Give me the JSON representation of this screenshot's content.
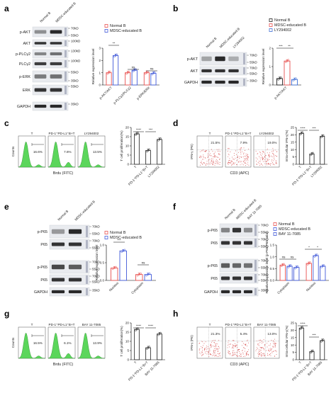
{
  "colors": {
    "normal": "#e8504f",
    "mdsc": "#4159d9",
    "ly": "#3f6fd6",
    "bay": "#4159d9",
    "green": "#5bd65b",
    "red": "#d23c3c",
    "blot_bg": "#e9ebef",
    "band": "#1f1f1f",
    "marker": "#9aa0b4"
  },
  "panels": {
    "a": {
      "label": "a",
      "lanes": [
        "Normal B",
        "MDSC-educated B"
      ],
      "rows": [
        "p-AKT",
        "AKT",
        "p-PLCγ2",
        "PLCγ2",
        "p-ERK",
        "ERK",
        "GAPDH"
      ],
      "markers": [
        "70kD",
        "55kD",
        "100kD",
        "130kD",
        "100kD",
        "55kD",
        "35kD",
        "55kD",
        "35kD"
      ],
      "chart": {
        "legend": [
          "Normal B",
          "MDSC-educated B"
        ],
        "ylabel": "Relative expression level",
        "yticks": [
          "0",
          "1",
          "2",
          "3"
        ],
        "categories": [
          "p-AKT/AKT",
          "p-PLCγ2/PLCγ2",
          "p-ERK/ERK"
        ],
        "sig": [
          "**",
          "ns",
          "ns"
        ]
      }
    },
    "b": {
      "label": "b",
      "lanes": [
        "Normal B",
        "MDSC-educated B",
        "LY294002"
      ],
      "rows": [
        "p-AKT",
        "AKT",
        "GAPDH"
      ],
      "markers": [
        "70kD",
        "55kD",
        "70kD",
        "55kD",
        "35kD"
      ],
      "chart": {
        "legend": [
          "Normal B",
          "MDSC-educated B",
          "LY294002"
        ],
        "ylabel": "Relative expression level",
        "yticks": [
          "0",
          "1",
          "2"
        ],
        "categories": [
          "p-AKT/AKT"
        ],
        "sig": [
          "***",
          "**"
        ]
      }
    },
    "c": {
      "label": "c",
      "flow": {
        "ylabel": "Counts",
        "xlabel": "Brdu (FITC)",
        "plots": [
          {
            "title": "T",
            "pct": "16.6%"
          },
          {
            "title": "PD-1⁺PD-L1⁺B+T",
            "pct": "7.6%"
          },
          {
            "title": "LY294002",
            "pct": "13.5%"
          }
        ]
      },
      "chart": {
        "ylabel": "T cell proliferation(%)",
        "yticks": [
          "0",
          "5",
          "10",
          "15",
          "20"
        ],
        "categories": [
          "T",
          "PD-1⁺PD-L1⁺B+T",
          "LY294002"
        ],
        "sig": [
          "****",
          "***"
        ]
      }
    },
    "d": {
      "label": "d",
      "flow": {
        "ylabel": "IFN-γ (PE)",
        "xlabel": "CD3 (APC)",
        "plots": [
          {
            "title": "T",
            "pct": "21.5%"
          },
          {
            "title": "PD-1⁺PD-L1⁺B+T",
            "pct": "7.9%"
          },
          {
            "title": "LY294002",
            "pct": "19.0%"
          }
        ]
      },
      "chart": {
        "ylabel": "Intra-cellular IFN-γ(%)",
        "yticks": [
          "0",
          "5",
          "10",
          "15",
          "20",
          "25"
        ],
        "categories": [
          "T",
          "PD-1⁺PD-L1⁺B+T",
          "LY294002"
        ],
        "sig": [
          "****",
          "***"
        ]
      }
    },
    "e": {
      "label": "e",
      "lanes": [
        "Normal B",
        "MDSC-educated B"
      ],
      "groups": [
        "Nucleus",
        "Cytoplasm"
      ],
      "rows": [
        "p-P65",
        "P65",
        "p-P65",
        "P65",
        "GAPDH"
      ],
      "markers": [
        "70kD",
        "55kD",
        "70kD",
        "55kD",
        "70kD",
        "55kD",
        "70kD",
        "55kD",
        "35kD"
      ],
      "chart": {
        "legend": [
          "Normal B",
          "MDSC-educated B"
        ],
        "ylabel": "Relative expression level",
        "yticks": [
          "0.0",
          "0.5",
          "1.0"
        ],
        "categories": [
          "Nucleus",
          "Cytoplasm"
        ],
        "sig": [
          "***",
          "ns"
        ]
      }
    },
    "f": {
      "label": "f",
      "lanes": [
        "Normal B",
        "MDSC-educated B",
        "BAY 11-7085"
      ],
      "groups": [
        "Nucleus",
        "Cytoplasm"
      ],
      "rows": [
        "p-P65",
        "P65",
        "p-P65",
        "P65",
        "GAPDH"
      ],
      "markers": [
        "70kD",
        "55kD",
        "70kD",
        "55kD",
        "70kD",
        "55kD",
        "70kD",
        "55kD",
        "35kD"
      ],
      "chart": {
        "legend": [
          "Normal B",
          "MDSC-educated B",
          "BAY 11-7085"
        ],
        "ylabel": "Relative expression level (p-P65/P65 ratio)",
        "yticks": [
          "0.0",
          "0.5",
          "1.0",
          "1.5"
        ],
        "categories": [
          "Cytoplasm",
          "Nucleus"
        ],
        "sig": [
          "ns",
          "ns",
          "*",
          "*"
        ]
      }
    },
    "g": {
      "label": "g",
      "flow": {
        "ylabel": "Counts",
        "xlabel": "Brdu (FITC)",
        "plots": [
          {
            "title": "T",
            "pct": "16.5%"
          },
          {
            "title": "PD-1⁺PD-L1⁺B+T",
            "pct": "6.1%"
          },
          {
            "title": "BAY 11-7085",
            "pct": "13.9%"
          }
        ]
      },
      "chart": {
        "ylabel": "T cell proliferation(%)",
        "yticks": [
          "0",
          "5",
          "10",
          "15",
          "20"
        ],
        "categories": [
          "T",
          "PD-1⁺PD-L1⁺B+T",
          "BAY 11-7085"
        ],
        "sig": [
          "****",
          "****"
        ]
      }
    },
    "h": {
      "label": "h",
      "flow": {
        "ylabel": "IFN-γ (PE)",
        "xlabel": "CD3 (APC)",
        "plots": [
          {
            "title": "T",
            "pct": "21.3%"
          },
          {
            "title": "PD-1⁺PD-L1⁺B+T",
            "pct": "5.4%"
          },
          {
            "title": "BAY 11-7085",
            "pct": "13.0%"
          }
        ]
      },
      "chart": {
        "ylabel": "Intra-cellular IFN-γ(%)",
        "yticks": [
          "0",
          "5",
          "10",
          "15",
          "20",
          "25"
        ],
        "categories": [
          "T",
          "PD-1⁺PD-L1⁺B+T",
          "BAY 11-7085"
        ],
        "sig": [
          "****",
          "***"
        ]
      }
    }
  },
  "chart_data": [
    {
      "panel": "a",
      "type": "bar",
      "categories": [
        "p-AKT/AKT",
        "p-PLCγ2/PLCγ2",
        "p-ERK/ERK"
      ],
      "series": [
        {
          "name": "Normal B",
          "values": [
            1.0,
            1.0,
            1.0
          ]
        },
        {
          "name": "MDSC-educated B",
          "values": [
            2.4,
            1.2,
            0.95
          ]
        }
      ],
      "ylabel": "Relative expression level",
      "ylim": [
        0,
        3
      ]
    },
    {
      "panel": "b",
      "type": "bar",
      "categories": [
        "p-AKT/AKT"
      ],
      "series": [
        {
          "name": "Normal B",
          "values": [
            0.35
          ]
        },
        {
          "name": "MDSC-educated B",
          "values": [
            1.3
          ]
        },
        {
          "name": "LY294002",
          "values": [
            0.3
          ]
        }
      ],
      "ylabel": "Relative expression level",
      "ylim": [
        0,
        2
      ]
    },
    {
      "panel": "c",
      "type": "bar",
      "categories": [
        "T",
        "PD-1⁺PD-L1⁺B+T",
        "LY294002"
      ],
      "values": [
        16.5,
        7.5,
        13.5
      ],
      "ylabel": "T cell proliferation(%)",
      "ylim": [
        0,
        20
      ]
    },
    {
      "panel": "d",
      "type": "bar",
      "categories": [
        "T",
        "PD-1⁺PD-L1⁺B+T",
        "LY294002"
      ],
      "values": [
        21,
        7,
        19
      ],
      "ylabel": "Intra-cellular IFN-γ(%)",
      "ylim": [
        0,
        25
      ]
    },
    {
      "panel": "e",
      "type": "bar",
      "categories": [
        "Nucleus",
        "Cytoplasm"
      ],
      "series": [
        {
          "name": "Normal B",
          "values": [
            0.42,
            0.2
          ]
        },
        {
          "name": "MDSC-educated B",
          "values": [
            1.0,
            0.2
          ]
        }
      ],
      "ylabel": "Relative expression level",
      "ylim": [
        0,
        1.2
      ]
    },
    {
      "panel": "f",
      "type": "bar",
      "categories": [
        "Cytoplasm",
        "Nucleus"
      ],
      "series": [
        {
          "name": "Normal B",
          "values": [
            0.65,
            0.72
          ]
        },
        {
          "name": "MDSC-educated B",
          "values": [
            0.6,
            1.05
          ]
        },
        {
          "name": "BAY 11-7085",
          "values": [
            0.55,
            0.6
          ]
        }
      ],
      "ylabel": "Relative expression level (p-P65/P65 ratio)",
      "ylim": [
        0,
        1.5
      ]
    },
    {
      "panel": "g",
      "type": "bar",
      "categories": [
        "T",
        "PD-1⁺PD-L1⁺B+T",
        "BAY 11-7085"
      ],
      "values": [
        16.5,
        6.5,
        14
      ],
      "ylabel": "T cell proliferation(%)",
      "ylim": [
        0,
        20
      ]
    },
    {
      "panel": "h",
      "type": "bar",
      "categories": [
        "T",
        "PD-1⁺PD-L1⁺B+T",
        "BAY 11-7085"
      ],
      "values": [
        21.5,
        5.5,
        13
      ],
      "ylabel": "Intra-cellular IFN-γ(%)",
      "ylim": [
        0,
        25
      ]
    }
  ]
}
